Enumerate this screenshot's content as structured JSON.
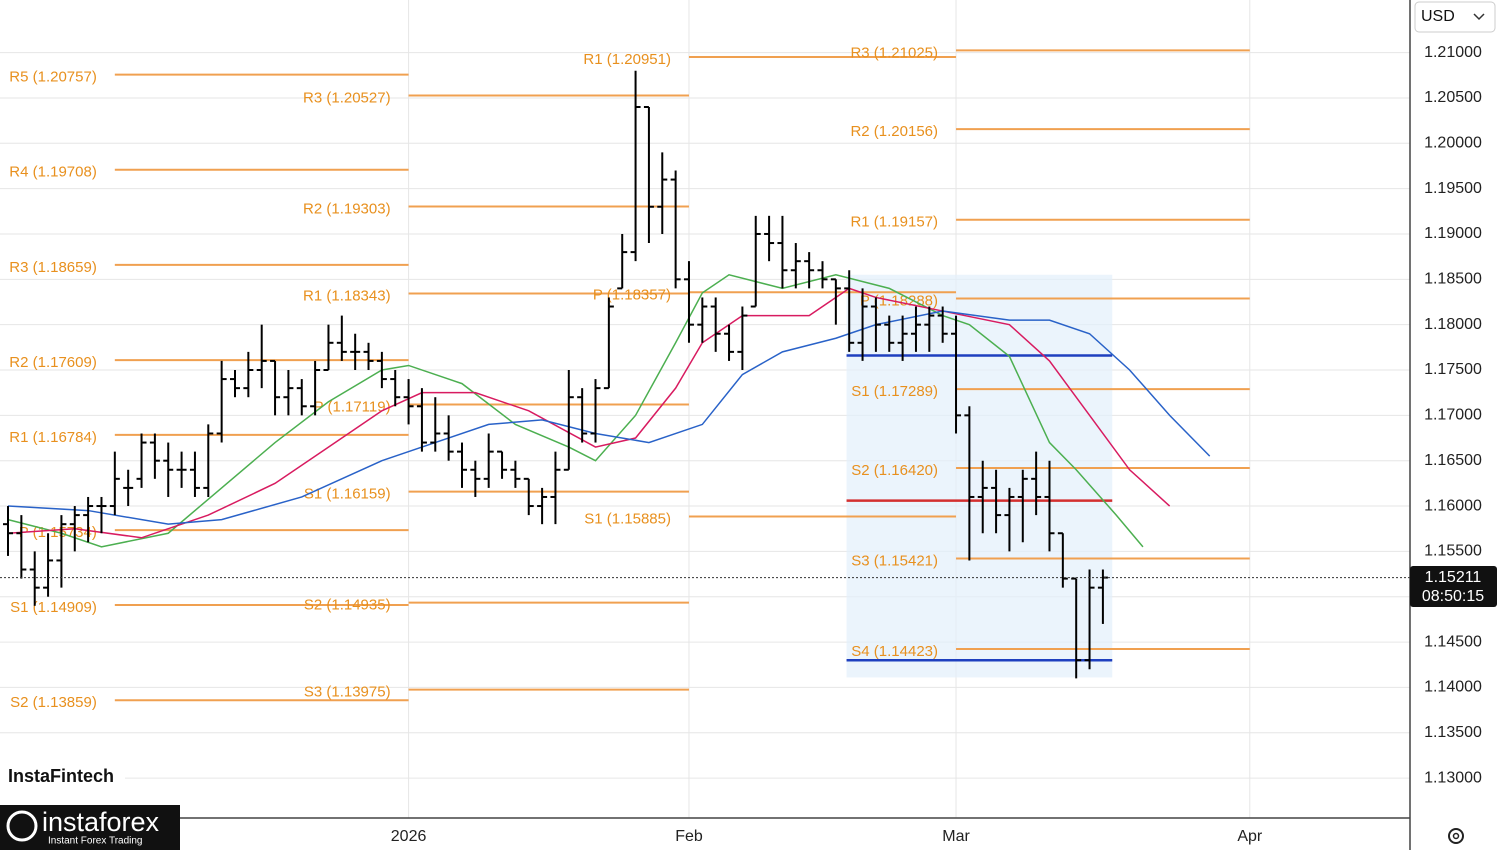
{
  "currency": "USD",
  "watermark": "InstaFintech",
  "logo": {
    "name": "instaforex",
    "tagline": "Instant Forex Trading"
  },
  "countdown": "08:50:15",
  "chart_data": {
    "type": "ohlc",
    "color": "#000000",
    "grid": true,
    "xlim": [
      -0.6,
      105
    ],
    "ylim": [
      1.1256,
      1.2158
    ],
    "xticks": [
      {
        "value": 30,
        "label": "2026"
      },
      {
        "value": 51,
        "label": "Feb"
      },
      {
        "value": 71,
        "label": "Mar"
      },
      {
        "value": 93,
        "label": "Apr"
      }
    ],
    "yticks": [
      {
        "value": 1.13,
        "label": "1.13000"
      },
      {
        "value": 1.135,
        "label": "1.13500"
      },
      {
        "value": 1.14,
        "label": "1.14000"
      },
      {
        "value": 1.145,
        "label": "1.14500"
      },
      {
        "value": 1.15,
        "label": "1.15000"
      },
      {
        "value": 1.155,
        "label": "1.15500"
      },
      {
        "value": 1.16,
        "label": "1.16000"
      },
      {
        "value": 1.165,
        "label": "1.16500"
      },
      {
        "value": 1.17,
        "label": "1.17000"
      },
      {
        "value": 1.175,
        "label": "1.17500"
      },
      {
        "value": 1.18,
        "label": "1.18000"
      },
      {
        "value": 1.185,
        "label": "1.18500"
      },
      {
        "value": 1.19,
        "label": "1.19000"
      },
      {
        "value": 1.195,
        "label": "1.19500"
      },
      {
        "value": 1.2,
        "label": "1.20000"
      },
      {
        "value": 1.205,
        "label": "1.20500"
      },
      {
        "value": 1.21,
        "label": "1.21000"
      }
    ],
    "x": [
      0,
      1,
      2,
      3,
      4,
      5,
      6,
      7,
      8,
      9,
      10,
      11,
      12,
      13,
      14,
      15,
      16,
      17,
      18,
      19,
      20,
      21,
      22,
      23,
      24,
      25,
      26,
      27,
      28,
      29,
      30,
      31,
      32,
      33,
      34,
      35,
      36,
      37,
      38,
      39,
      40,
      41,
      42,
      43,
      44,
      45,
      46,
      47,
      48,
      49,
      50,
      51,
      52,
      53,
      54,
      55,
      56,
      57,
      58,
      59,
      60,
      61,
      62,
      63,
      64,
      65,
      66,
      67,
      68,
      69,
      70,
      71,
      72,
      73,
      74,
      75,
      76,
      77,
      78,
      79,
      80,
      81,
      82
    ],
    "open": [
      1.158,
      1.157,
      1.153,
      1.151,
      1.154,
      1.158,
      1.159,
      1.16,
      1.16,
      1.162,
      1.163,
      1.167,
      1.165,
      1.164,
      1.164,
      1.162,
      1.168,
      1.174,
      1.173,
      1.175,
      1.176,
      1.172,
      1.173,
      1.171,
      1.175,
      1.178,
      1.177,
      1.177,
      1.176,
      1.174,
      1.172,
      1.171,
      1.167,
      1.168,
      1.166,
      1.164,
      1.163,
      1.166,
      1.164,
      1.163,
      1.16,
      1.161,
      1.164,
      1.172,
      1.168,
      1.173,
      1.184,
      1.188,
      1.204,
      1.193,
      1.196,
      1.185,
      1.18,
      1.182,
      1.179,
      1.177,
      1.182,
      1.19,
      1.189,
      1.186,
      1.187,
      1.186,
      1.185,
      1.184,
      1.178,
      1.182,
      1.18,
      1.178,
      1.179,
      1.18,
      1.181,
      1.179,
      1.17,
      1.161,
      1.162,
      1.159,
      1.161,
      1.163,
      1.161,
      1.157,
      1.152,
      1.143,
      1.151
    ],
    "high": [
      1.16,
      1.159,
      1.155,
      1.157,
      1.159,
      1.16,
      1.161,
      1.161,
      1.166,
      1.164,
      1.168,
      1.168,
      1.167,
      1.166,
      1.166,
      1.169,
      1.176,
      1.175,
      1.177,
      1.18,
      1.176,
      1.175,
      1.174,
      1.176,
      1.18,
      1.181,
      1.179,
      1.178,
      1.177,
      1.175,
      1.174,
      1.173,
      1.172,
      1.17,
      1.167,
      1.165,
      1.168,
      1.166,
      1.165,
      1.163,
      1.162,
      1.166,
      1.175,
      1.173,
      1.174,
      1.183,
      1.19,
      1.208,
      1.204,
      1.199,
      1.197,
      1.187,
      1.183,
      1.183,
      1.18,
      1.182,
      1.192,
      1.192,
      1.192,
      1.189,
      1.188,
      1.187,
      1.185,
      1.186,
      1.184,
      1.183,
      1.181,
      1.181,
      1.182,
      1.182,
      1.182,
      1.181,
      1.171,
      1.165,
      1.164,
      1.162,
      1.164,
      1.166,
      1.165,
      1.157,
      1.152,
      1.153,
      1.153
    ],
    "low": [
      1.1545,
      1.152,
      1.149,
      1.15,
      1.151,
      1.155,
      1.156,
      1.157,
      1.159,
      1.16,
      1.162,
      1.163,
      1.161,
      1.162,
      1.161,
      1.161,
      1.167,
      1.172,
      1.172,
      1.173,
      1.17,
      1.17,
      1.17,
      1.17,
      1.175,
      1.176,
      1.175,
      1.175,
      1.173,
      1.171,
      1.169,
      1.166,
      1.166,
      1.165,
      1.162,
      1.161,
      1.162,
      1.163,
      1.162,
      1.159,
      1.158,
      1.158,
      1.164,
      1.167,
      1.167,
      1.173,
      1.184,
      1.187,
      1.189,
      1.19,
      1.184,
      1.178,
      1.178,
      1.177,
      1.176,
      1.175,
      1.182,
      1.187,
      1.184,
      1.184,
      1.184,
      1.184,
      1.18,
      1.177,
      1.176,
      1.177,
      1.177,
      1.176,
      1.177,
      1.177,
      1.178,
      1.168,
      1.154,
      1.157,
      1.157,
      1.155,
      1.156,
      1.159,
      1.155,
      1.151,
      1.141,
      1.142,
      1.147
    ],
    "close": [
      1.157,
      1.153,
      1.151,
      1.154,
      1.158,
      1.159,
      1.16,
      1.16,
      1.163,
      1.162,
      1.167,
      1.165,
      1.164,
      1.164,
      1.162,
      1.168,
      1.174,
      1.173,
      1.175,
      1.176,
      1.172,
      1.173,
      1.171,
      1.175,
      1.178,
      1.177,
      1.177,
      1.176,
      1.174,
      1.172,
      1.171,
      1.167,
      1.168,
      1.166,
      1.164,
      1.163,
      1.166,
      1.164,
      1.163,
      1.16,
      1.161,
      1.164,
      1.172,
      1.168,
      1.173,
      1.182,
      1.188,
      1.204,
      1.193,
      1.196,
      1.185,
      1.18,
      1.182,
      1.179,
      1.177,
      1.181,
      1.19,
      1.189,
      1.186,
      1.187,
      1.186,
      1.185,
      1.184,
      1.178,
      1.182,
      1.18,
      1.178,
      1.179,
      1.18,
      1.181,
      1.179,
      1.17,
      1.161,
      1.162,
      1.159,
      1.161,
      1.163,
      1.161,
      1.157,
      1.152,
      1.143,
      1.151,
      1.15211
    ],
    "lines": [
      {
        "color": "#4caf50",
        "x": [
          0,
          4,
          7,
          12,
          16,
          20,
          24,
          28,
          30,
          34,
          38,
          42,
          44,
          47,
          50,
          52,
          54,
          58,
          62,
          66,
          70,
          72,
          75,
          78,
          80,
          83,
          85
        ],
        "values": [
          1.1585,
          1.157,
          1.1555,
          1.157,
          1.162,
          1.167,
          1.1715,
          1.175,
          1.1755,
          1.1735,
          1.169,
          1.1665,
          1.165,
          1.17,
          1.178,
          1.1835,
          1.1855,
          1.184,
          1.1855,
          1.184,
          1.181,
          1.18,
          1.1765,
          1.167,
          1.164,
          1.159,
          1.1555
        ]
      },
      {
        "color": "#d81b60",
        "x": [
          0,
          5,
          10,
          15,
          20,
          24,
          28,
          31,
          35,
          39,
          44,
          47,
          50,
          52,
          55,
          60,
          63,
          65,
          70,
          75,
          78,
          81,
          84,
          87
        ],
        "values": [
          1.157,
          1.1575,
          1.1565,
          1.159,
          1.1625,
          1.1665,
          1.1705,
          1.1725,
          1.1725,
          1.1705,
          1.1665,
          1.1675,
          1.173,
          1.178,
          1.181,
          1.181,
          1.184,
          1.183,
          1.1815,
          1.18,
          1.176,
          1.17,
          1.164,
          1.16
        ]
      },
      {
        "color": "#2962c8",
        "x": [
          0,
          6,
          12,
          16,
          22,
          28,
          31,
          36,
          40,
          44,
          48,
          52,
          55,
          58,
          62,
          65,
          70,
          75,
          78,
          81,
          84,
          87,
          90
        ],
        "values": [
          1.16,
          1.1595,
          1.158,
          1.1585,
          1.161,
          1.165,
          1.1665,
          1.169,
          1.1695,
          1.168,
          1.167,
          1.169,
          1.1745,
          1.177,
          1.1785,
          1.18,
          1.1815,
          1.1805,
          1.1805,
          1.179,
          1.175,
          1.17,
          1.1655
        ]
      }
    ],
    "pivots": [
      {
        "start": 8,
        "end": 30,
        "levels": [
          {
            "label": "R5 (1.20757)",
            "value": 1.20757
          },
          {
            "label": "R4 (1.19708)",
            "value": 1.19708
          },
          {
            "label": "R3 (1.18659)",
            "value": 1.18659
          },
          {
            "label": "R2 (1.17609)",
            "value": 1.17609
          },
          {
            "label": "R1 (1.16784)",
            "value": 1.16784
          },
          {
            "label": "P (1.15734)",
            "value": 1.15734
          },
          {
            "label": "S1 (1.14909)",
            "value": 1.14909
          },
          {
            "label": "S2 (1.13859)",
            "value": 1.13859
          }
        ]
      },
      {
        "start": 30,
        "end": 51,
        "levels": [
          {
            "label": "R3 (1.20527)",
            "value": 1.20527
          },
          {
            "label": "R2 (1.19303)",
            "value": 1.19303
          },
          {
            "label": "R1 (1.18343)",
            "value": 1.18343
          },
          {
            "label": "P (1.17119)",
            "value": 1.17119
          },
          {
            "label": "S1 (1.16159)",
            "value": 1.16159
          },
          {
            "label": "S2 (1.14935)",
            "value": 1.14935
          },
          {
            "label": "S3 (1.13975)",
            "value": 1.13975
          }
        ]
      },
      {
        "start": 51,
        "end": 71,
        "levels": [
          {
            "label": "R1 (1.20951)",
            "value": 1.20951
          },
          {
            "label": "P (1.18357)",
            "value": 1.18357
          },
          {
            "label": "S1 (1.15885)",
            "value": 1.15885
          }
        ]
      },
      {
        "start": 71,
        "end": 93,
        "levels": [
          {
            "label": "R3 (1.21025)",
            "value": 1.21025
          },
          {
            "label": "R2 (1.20156)",
            "value": 1.20156
          },
          {
            "label": "R1 (1.19157)",
            "value": 1.19157
          },
          {
            "label": "P (1.18288)",
            "value": 1.18288
          },
          {
            "label": "S1 (1.17289)",
            "value": 1.17289
          },
          {
            "label": "S2 (1.16420)",
            "value": 1.1642
          },
          {
            "label": "S3 (1.15421)",
            "value": 1.15421
          },
          {
            "label": "S4 (1.14423)",
            "value": 1.14423
          }
        ]
      }
    ],
    "profile": {
      "start": 62.8,
      "end": 82.7,
      "high": 1.1855,
      "low": 1.1411,
      "levels": [
        {
          "color": "#d32f2f",
          "value": 1.1606
        },
        {
          "color": "#1e3fbf",
          "value": 1.1766
        },
        {
          "color": "#1e3fbf",
          "value": 1.143
        }
      ]
    },
    "last_price": {
      "value": 1.15211,
      "label": "1.15211"
    }
  }
}
